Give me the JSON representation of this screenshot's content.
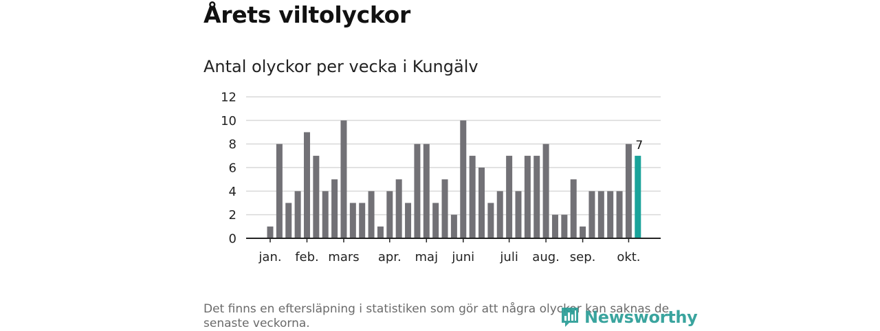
{
  "header": {
    "title": "Årets viltolyckor",
    "subtitle": "Antal olyckor per vecka i Kungälv"
  },
  "footer": {
    "note": "Det finns en eftersläpning i statistiken som gör att några olyckor kan saknas de senaste veckorna.",
    "logo_text": "Newsworthy",
    "logo_color": "#2a9d96"
  },
  "chart_data": {
    "type": "bar",
    "title": "Antal olyckor per vecka i Kungälv",
    "xlabel": "",
    "ylabel": "",
    "ylim": [
      0,
      12
    ],
    "yticks": [
      0,
      2,
      4,
      6,
      8,
      10,
      12
    ],
    "grid": true,
    "colors": {
      "bar": "#727176",
      "highlight": "#1aa39a",
      "grid": "#d9d9d9",
      "axis": "#222222"
    },
    "weeks": [
      1,
      2,
      3,
      4,
      5,
      6,
      7,
      8,
      9,
      10,
      11,
      12,
      13,
      14,
      15,
      16,
      17,
      18,
      19,
      20,
      21,
      22,
      23,
      24,
      25,
      26,
      27,
      28,
      29,
      30,
      31,
      32,
      33,
      34,
      35,
      36,
      37,
      38,
      39,
      40,
      41
    ],
    "values": [
      1,
      8,
      3,
      4,
      9,
      7,
      4,
      5,
      10,
      3,
      3,
      4,
      1,
      4,
      5,
      3,
      8,
      8,
      3,
      5,
      2,
      10,
      7,
      6,
      3,
      4,
      7,
      4,
      7,
      7,
      8,
      2,
      2,
      5,
      1,
      4,
      4,
      4,
      4,
      8,
      7
    ],
    "highlight_index": 40,
    "highlight_label": "7",
    "month_labels": [
      {
        "label": "jan.",
        "week": 1
      },
      {
        "label": "feb.",
        "week": 5
      },
      {
        "label": "mars",
        "week": 9
      },
      {
        "label": "apr.",
        "week": 14
      },
      {
        "label": "maj",
        "week": 18
      },
      {
        "label": "juni",
        "week": 22
      },
      {
        "label": "juli",
        "week": 27
      },
      {
        "label": "aug.",
        "week": 31
      },
      {
        "label": "sep.",
        "week": 35
      },
      {
        "label": "okt.",
        "week": 40
      }
    ]
  }
}
